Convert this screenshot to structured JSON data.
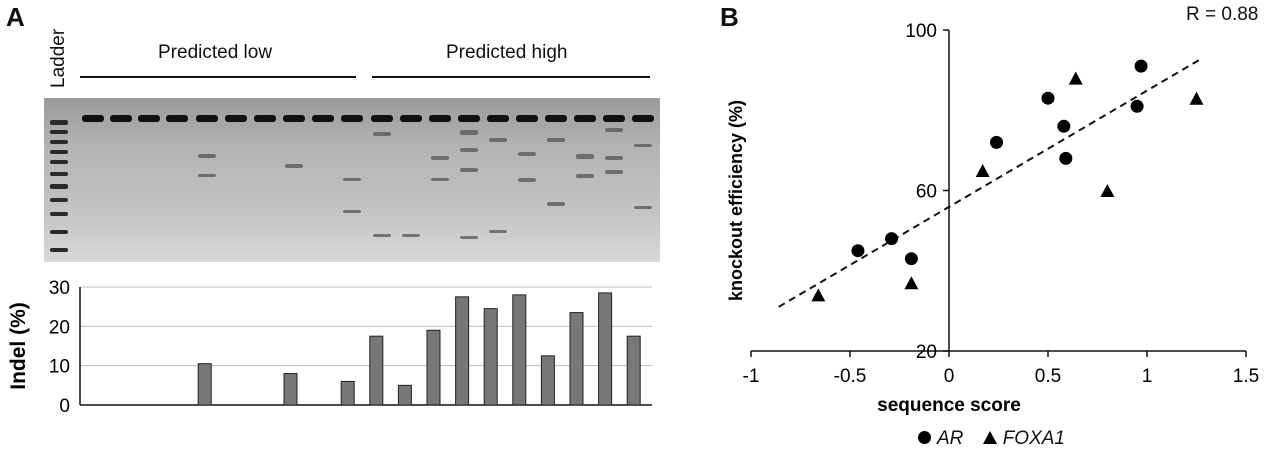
{
  "panel_a": {
    "letter": "A",
    "ladder_label": "Ladder",
    "group_low": "Predicted low",
    "group_high": "Predicted high"
  },
  "panel_b": {
    "letter": "B",
    "r_label": "R = 0.88",
    "legend": [
      {
        "marker": "circle",
        "label": "AR"
      },
      {
        "marker": "triangle",
        "label": "FOXA1"
      }
    ]
  },
  "chart_data": [
    {
      "type": "bar",
      "ylabel": "Indel (%)",
      "ylim": [
        0,
        30
      ],
      "yticks": [
        0,
        10,
        20,
        30
      ],
      "grid": true,
      "values": [
        0,
        0,
        0,
        0,
        10.5,
        0,
        0,
        8,
        0,
        6,
        17.5,
        5,
        19,
        27.5,
        24.5,
        28,
        12.5,
        23.5,
        28.5,
        17.5
      ],
      "bar_color": "#777777"
    },
    {
      "type": "scatter",
      "xlabel": "sequence score",
      "ylabel": "knockout efficiency (%)",
      "xlim": [
        -1,
        1.5
      ],
      "ylim": [
        20,
        100
      ],
      "xticks": [
        -1,
        -0.5,
        0,
        0.5,
        1,
        1.5
      ],
      "yticks": [
        20,
        60,
        100
      ],
      "series": [
        {
          "name": "AR",
          "marker": "circle",
          "points": [
            [
              -0.46,
              45
            ],
            [
              -0.29,
              48
            ],
            [
              -0.19,
              43
            ],
            [
              0.24,
              72
            ],
            [
              0.5,
              83
            ],
            [
              0.58,
              76
            ],
            [
              0.59,
              68
            ],
            [
              0.95,
              81
            ],
            [
              0.97,
              91
            ]
          ]
        },
        {
          "name": "FOXA1",
          "marker": "triangle",
          "points": [
            [
              -0.66,
              34
            ],
            [
              -0.19,
              37
            ],
            [
              0.17,
              65
            ],
            [
              0.64,
              88
            ],
            [
              0.8,
              60
            ],
            [
              1.25,
              83
            ]
          ]
        }
      ],
      "trendline": {
        "style": "dashed",
        "from": [
          -0.86,
          31
        ],
        "to": [
          1.28,
          93
        ]
      }
    }
  ]
}
